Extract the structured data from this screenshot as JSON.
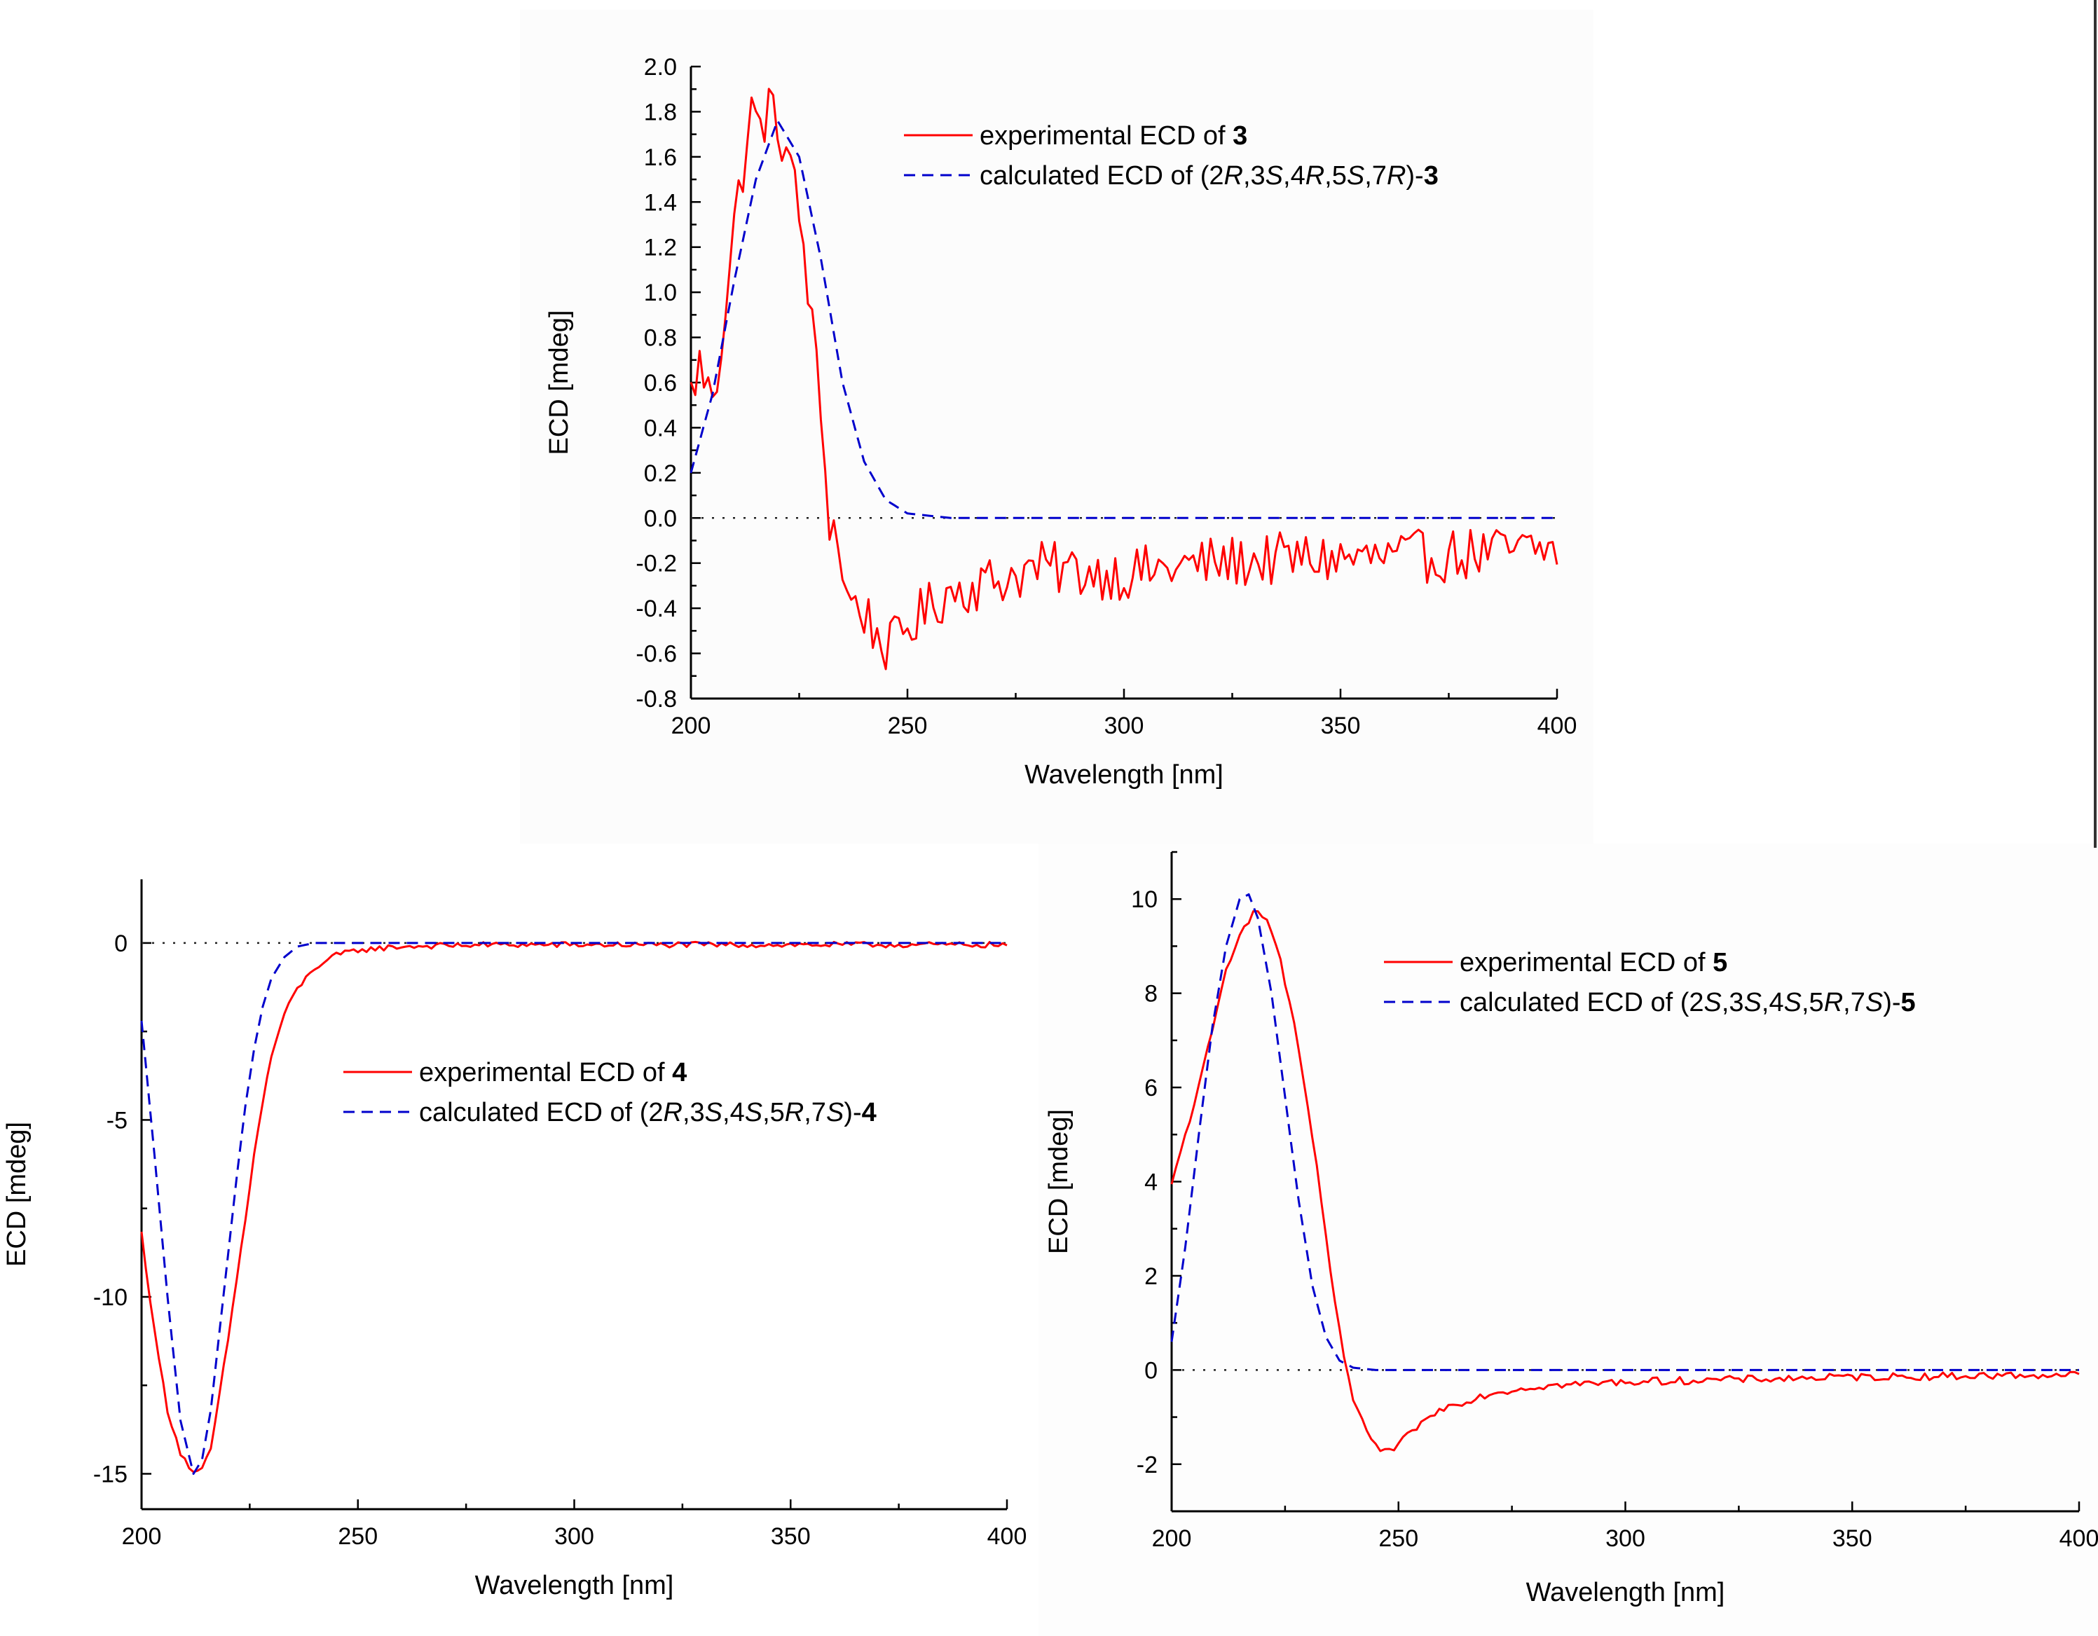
{
  "chart_data": [
    {
      "type": "line",
      "panel": "top",
      "xlabel": "Wavelength [nm]",
      "ylabel": "ECD [mdeg]",
      "xlim": [
        200,
        400
      ],
      "ylim": [
        -0.8,
        2.0
      ],
      "xticks": [
        200,
        250,
        300,
        350,
        400
      ],
      "yticks": [
        -0.8,
        -0.6,
        -0.4,
        -0.2,
        0.0,
        0.2,
        0.4,
        0.6,
        0.8,
        1.0,
        1.2,
        1.4,
        1.6,
        1.8,
        2.0
      ],
      "ytick_decimals": 1,
      "legend_position": "top-right",
      "zero_line": true,
      "series": [
        {
          "name": "experimental ECD of 3",
          "legend": [
            {
              "t": "experimental ECD of "
            },
            {
              "t": "3",
              "b": true
            }
          ],
          "color": "#ff0000",
          "style": "solid",
          "noise": 0.12,
          "points": [
            [
              200,
              0.55
            ],
            [
              202,
              0.68
            ],
            [
              204,
              0.55
            ],
            [
              206,
              0.62
            ],
            [
              208,
              0.95
            ],
            [
              210,
              1.3
            ],
            [
              212,
              1.55
            ],
            [
              214,
              1.8
            ],
            [
              216,
              1.72
            ],
            [
              218,
              1.82
            ],
            [
              220,
              1.72
            ],
            [
              222,
              1.65
            ],
            [
              224,
              1.45
            ],
            [
              226,
              1.2
            ],
            [
              228,
              0.85
            ],
            [
              230,
              0.45
            ],
            [
              232,
              0.0
            ],
            [
              234,
              -0.1
            ],
            [
              236,
              -0.35
            ],
            [
              240,
              -0.42
            ],
            [
              244,
              -0.55
            ],
            [
              246,
              -0.58
            ],
            [
              250,
              -0.48
            ],
            [
              255,
              -0.4
            ],
            [
              260,
              -0.32
            ],
            [
              270,
              -0.28
            ],
            [
              280,
              -0.22
            ],
            [
              300,
              -0.25
            ],
            [
              320,
              -0.2
            ],
            [
              340,
              -0.18
            ],
            [
              360,
              -0.18
            ],
            [
              380,
              -0.16
            ],
            [
              400,
              -0.14
            ]
          ]
        },
        {
          "name": "calculated ECD of (2R,3S,4R,5S,7R)-3",
          "legend": [
            {
              "t": "calculated ECD of (2"
            },
            {
              "t": "R",
              "i": true
            },
            {
              "t": ",3"
            },
            {
              "t": "S",
              "i": true
            },
            {
              "t": ",4"
            },
            {
              "t": "R",
              "i": true
            },
            {
              "t": ",5"
            },
            {
              "t": "S",
              "i": true
            },
            {
              "t": ",7"
            },
            {
              "t": "R",
              "i": true
            },
            {
              "t": ")-"
            },
            {
              "t": "3",
              "b": true
            }
          ],
          "color": "#0000cc",
          "style": "dashed",
          "noise": 0,
          "points": [
            [
              200,
              0.2
            ],
            [
              205,
              0.55
            ],
            [
              210,
              1.05
            ],
            [
              215,
              1.5
            ],
            [
              220,
              1.76
            ],
            [
              225,
              1.6
            ],
            [
              230,
              1.15
            ],
            [
              235,
              0.6
            ],
            [
              240,
              0.25
            ],
            [
              245,
              0.08
            ],
            [
              250,
              0.02
            ],
            [
              255,
              0.01
            ],
            [
              260,
              0.0
            ],
            [
              400,
              0.0
            ]
          ]
        }
      ]
    },
    {
      "type": "line",
      "panel": "bottom-left",
      "xlabel": "Wavelength [nm]",
      "ylabel": "ECD [mdeg]",
      "xlim": [
        200,
        400
      ],
      "ylim": [
        -16,
        1.8
      ],
      "xticks": [
        200,
        250,
        300,
        350,
        400
      ],
      "yticks": [
        -15,
        -10,
        -5,
        0
      ],
      "ytick_decimals": 0,
      "legend_position": "center-right",
      "zero_line": true,
      "series": [
        {
          "name": "experimental ECD of 4",
          "legend": [
            {
              "t": "experimental ECD of "
            },
            {
              "t": "4",
              "b": true
            }
          ],
          "color": "#ff0000",
          "style": "solid",
          "noise": 0.08,
          "points": [
            [
              200,
              -8.2
            ],
            [
              203,
              -11.0
            ],
            [
              206,
              -13.2
            ],
            [
              209,
              -14.4
            ],
            [
              212,
              -15.0
            ],
            [
              214,
              -14.9
            ],
            [
              216,
              -14.3
            ],
            [
              218,
              -12.8
            ],
            [
              220,
              -11.2
            ],
            [
              222,
              -9.5
            ],
            [
              224,
              -7.8
            ],
            [
              226,
              -6.0
            ],
            [
              228,
              -4.5
            ],
            [
              230,
              -3.2
            ],
            [
              233,
              -2.0
            ],
            [
              236,
              -1.3
            ],
            [
              240,
              -0.7
            ],
            [
              245,
              -0.35
            ],
            [
              250,
              -0.2
            ],
            [
              260,
              -0.1
            ],
            [
              280,
              -0.05
            ],
            [
              300,
              -0.05
            ],
            [
              350,
              -0.05
            ],
            [
              400,
              -0.05
            ]
          ]
        },
        {
          "name": "calculated ECD of (2R,3S,4S,5R,7S)-4",
          "legend": [
            {
              "t": "calculated ECD of (2"
            },
            {
              "t": "R",
              "i": true
            },
            {
              "t": ",3"
            },
            {
              "t": "S",
              "i": true
            },
            {
              "t": ",4"
            },
            {
              "t": "S",
              "i": true
            },
            {
              "t": ",5"
            },
            {
              "t": "R",
              "i": true
            },
            {
              "t": ",7"
            },
            {
              "t": "S",
              "i": true
            },
            {
              "t": ")-"
            },
            {
              "t": "4",
              "b": true
            }
          ],
          "color": "#0000cc",
          "style": "dashed",
          "noise": 0,
          "points": [
            [
              200,
              -2.2
            ],
            [
              203,
              -6.0
            ],
            [
              206,
              -10.0
            ],
            [
              209,
              -13.5
            ],
            [
              212,
              -15.0
            ],
            [
              214,
              -14.6
            ],
            [
              216,
              -13.2
            ],
            [
              218,
              -11.0
            ],
            [
              220,
              -8.8
            ],
            [
              222,
              -6.6
            ],
            [
              224,
              -4.6
            ],
            [
              226,
              -3.0
            ],
            [
              228,
              -1.8
            ],
            [
              230,
              -1.0
            ],
            [
              233,
              -0.4
            ],
            [
              236,
              -0.1
            ],
            [
              240,
              0.0
            ],
            [
              400,
              0.0
            ]
          ]
        }
      ]
    },
    {
      "type": "line",
      "panel": "bottom-right",
      "xlabel": "Wavelength [nm]",
      "ylabel": "ECD [mdeg]",
      "xlim": [
        200,
        400
      ],
      "ylim": [
        -3,
        11
      ],
      "xticks": [
        200,
        250,
        300,
        350,
        400
      ],
      "yticks": [
        -2,
        0,
        2,
        4,
        6,
        8,
        10
      ],
      "ytick_decimals": 0,
      "legend_position": "top-right",
      "zero_line": true,
      "series": [
        {
          "name": "experimental ECD of 5",
          "legend": [
            {
              "t": "experimental ECD of "
            },
            {
              "t": "5",
              "b": true
            }
          ],
          "color": "#ff0000",
          "style": "solid",
          "noise": 0.08,
          "points": [
            [
              200,
              3.9
            ],
            [
              203,
              5.0
            ],
            [
              206,
              6.0
            ],
            [
              209,
              7.2
            ],
            [
              212,
              8.5
            ],
            [
              215,
              9.3
            ],
            [
              218,
              9.7
            ],
            [
              221,
              9.6
            ],
            [
              224,
              8.7
            ],
            [
              227,
              7.3
            ],
            [
              230,
              5.6
            ],
            [
              233,
              3.6
            ],
            [
              236,
              1.4
            ],
            [
              238,
              0.2
            ],
            [
              240,
              -0.6
            ],
            [
              243,
              -1.3
            ],
            [
              246,
              -1.8
            ],
            [
              250,
              -1.6
            ],
            [
              254,
              -1.2
            ],
            [
              260,
              -0.8
            ],
            [
              270,
              -0.5
            ],
            [
              280,
              -0.35
            ],
            [
              300,
              -0.25
            ],
            [
              350,
              -0.15
            ],
            [
              400,
              -0.1
            ]
          ]
        },
        {
          "name": "calculated ECD of (2S,3S,4S,5R,7S)-5",
          "legend": [
            {
              "t": "calculated ECD of (2"
            },
            {
              "t": "S",
              "i": true
            },
            {
              "t": ",3"
            },
            {
              "t": "S",
              "i": true
            },
            {
              "t": ",4"
            },
            {
              "t": "S",
              "i": true
            },
            {
              "t": ",5"
            },
            {
              "t": "R",
              "i": true
            },
            {
              "t": ",7"
            },
            {
              "t": "S",
              "i": true
            },
            {
              "t": ")-"
            },
            {
              "t": "5",
              "b": true
            }
          ],
          "color": "#0000cc",
          "style": "dashed",
          "noise": 0,
          "points": [
            [
              200,
              0.6
            ],
            [
              203,
              2.6
            ],
            [
              206,
              5.0
            ],
            [
              209,
              7.3
            ],
            [
              212,
              9.0
            ],
            [
              215,
              10.0
            ],
            [
              217,
              10.1
            ],
            [
              219,
              9.6
            ],
            [
              222,
              8.0
            ],
            [
              225,
              5.8
            ],
            [
              228,
              3.6
            ],
            [
              231,
              1.8
            ],
            [
              234,
              0.7
            ],
            [
              237,
              0.2
            ],
            [
              240,
              0.05
            ],
            [
              245,
              0.0
            ],
            [
              400,
              0.0
            ]
          ]
        }
      ]
    }
  ]
}
